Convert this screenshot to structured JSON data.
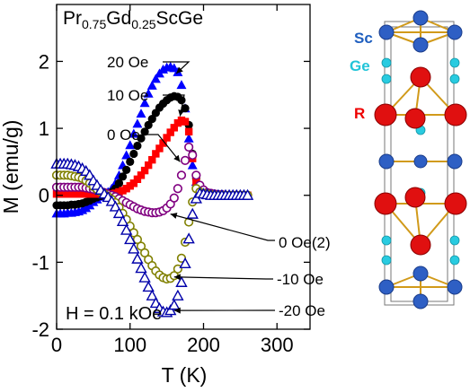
{
  "chart_data": {
    "type": "scatter",
    "title_parts": {
      "el1": "Pr",
      "sub1": "0.75",
      "el2": "Gd",
      "sub2": "0.25",
      "rest": "ScGe"
    },
    "field_label": "H = 0.1 kOe",
    "xlabel": "T (K)",
    "ylabel": "M (emu/g)",
    "xlim": [
      0,
      345
    ],
    "ylim": [
      -2,
      2.85
    ],
    "xticks": [
      0,
      100,
      200,
      300
    ],
    "yticks": [
      -2,
      -1,
      0,
      1,
      2
    ],
    "series": [
      {
        "name": "20 Oe",
        "color": "#0000ff",
        "marker": "triangle-filled",
        "x": [
          0,
          5,
          10,
          15,
          20,
          25,
          30,
          35,
          40,
          45,
          50,
          55,
          60,
          65,
          70,
          75,
          80,
          85,
          90,
          95,
          100,
          105,
          110,
          115,
          120,
          125,
          130,
          135,
          140,
          145,
          150,
          155,
          160,
          165,
          170,
          175,
          180,
          185,
          190,
          195,
          200,
          205,
          210,
          215,
          220,
          225,
          230,
          235,
          240,
          245,
          250,
          255,
          260
        ],
        "y": [
          -0.27,
          -0.27,
          -0.27,
          -0.26,
          -0.26,
          -0.25,
          -0.24,
          -0.22,
          -0.19,
          -0.15,
          -0.1,
          -0.06,
          -0.02,
          0.0,
          0.05,
          0.1,
          0.18,
          0.3,
          0.45,
          0.6,
          0.75,
          0.92,
          1.07,
          1.22,
          1.38,
          1.52,
          1.64,
          1.74,
          1.82,
          1.88,
          1.91,
          1.92,
          1.9,
          1.84,
          1.65,
          1.3,
          0.85,
          0.45,
          0.2,
          0.1,
          0.05,
          0.03,
          0.02,
          0.01,
          0.01,
          0.0,
          0.0,
          0.0,
          0.0,
          0.0,
          0.0,
          0.0,
          0.0
        ]
      },
      {
        "name": "10 Oe",
        "color": "#000000",
        "marker": "circle-filled",
        "x": [
          0,
          5,
          10,
          15,
          20,
          25,
          30,
          35,
          40,
          45,
          50,
          55,
          60,
          65,
          70,
          75,
          80,
          85,
          90,
          95,
          100,
          105,
          110,
          115,
          120,
          125,
          130,
          135,
          140,
          145,
          150,
          155,
          160,
          165,
          170,
          175,
          180,
          185,
          190,
          195,
          200,
          205,
          210,
          215,
          220,
          225,
          230,
          235,
          240,
          245,
          250,
          255,
          260
        ],
        "y": [
          -0.15,
          -0.15,
          -0.15,
          -0.15,
          -0.14,
          -0.14,
          -0.13,
          -0.12,
          -0.1,
          -0.08,
          -0.05,
          -0.03,
          -0.01,
          0.0,
          0.02,
          0.05,
          0.1,
          0.18,
          0.28,
          0.38,
          0.5,
          0.62,
          0.74,
          0.85,
          0.95,
          1.05,
          1.14,
          1.23,
          1.31,
          1.37,
          1.42,
          1.46,
          1.48,
          1.47,
          1.42,
          1.3,
          1.05,
          0.62,
          0.25,
          0.1,
          0.05,
          0.03,
          0.02,
          0.01,
          0.01,
          0.0,
          0.0,
          0.0,
          0.0,
          0.0,
          0.0,
          0.0,
          0.0
        ]
      },
      {
        "name": "0 Oe",
        "color": "#ff0000",
        "marker": "square-filled",
        "x": [
          0,
          5,
          10,
          15,
          20,
          25,
          30,
          35,
          40,
          45,
          50,
          55,
          60,
          65,
          70,
          75,
          80,
          85,
          90,
          95,
          100,
          105,
          110,
          115,
          120,
          125,
          130,
          135,
          140,
          145,
          150,
          155,
          160,
          165,
          170,
          175,
          180,
          185,
          190,
          195,
          200,
          205,
          210,
          215,
          220,
          225,
          230,
          235,
          240,
          245,
          250,
          255,
          260
        ],
        "y": [
          0.02,
          0.02,
          0.02,
          0.02,
          0.02,
          0.02,
          0.02,
          0.02,
          0.02,
          0.02,
          0.02,
          0.02,
          0.02,
          0.02,
          0.02,
          0.02,
          0.03,
          0.05,
          0.07,
          0.1,
          0.14,
          0.18,
          0.24,
          0.3,
          0.37,
          0.45,
          0.53,
          0.62,
          0.7,
          0.78,
          0.86,
          0.94,
          1.01,
          1.08,
          1.12,
          1.1,
          0.95,
          0.55,
          0.2,
          0.08,
          0.04,
          0.02,
          0.01,
          0.01,
          0.0,
          0.0,
          0.0,
          0.0,
          0.0,
          0.0,
          0.0,
          0.0,
          0.0
        ]
      },
      {
        "name": "0 Oe(2)",
        "color": "#800080",
        "marker": "circle-open",
        "x": [
          0,
          5,
          10,
          15,
          20,
          25,
          30,
          35,
          40,
          45,
          50,
          55,
          60,
          65,
          70,
          75,
          80,
          85,
          90,
          95,
          100,
          105,
          110,
          115,
          120,
          125,
          130,
          135,
          140,
          145,
          150,
          155,
          160,
          165,
          170,
          175,
          180,
          185,
          190,
          195,
          200,
          205,
          210,
          215,
          220,
          225,
          230,
          235,
          240,
          245,
          250,
          255,
          260
        ],
        "y": [
          0.12,
          0.12,
          0.12,
          0.12,
          0.12,
          0.12,
          0.12,
          0.12,
          0.11,
          0.1,
          0.09,
          0.08,
          0.06,
          0.04,
          0.02,
          0.0,
          -0.02,
          -0.05,
          -0.08,
          -0.11,
          -0.14,
          -0.17,
          -0.2,
          -0.22,
          -0.24,
          -0.25,
          -0.26,
          -0.26,
          -0.25,
          -0.23,
          -0.19,
          -0.13,
          -0.04,
          0.1,
          0.3,
          0.52,
          0.72,
          0.6,
          0.3,
          0.15,
          0.08,
          0.04,
          0.03,
          0.02,
          0.01,
          0.01,
          0.0,
          0.0,
          0.0,
          0.0,
          0.0,
          0.0,
          0.0
        ]
      },
      {
        "name": "-10 Oe",
        "color": "#808000",
        "marker": "circle-open",
        "x": [
          0,
          5,
          10,
          15,
          20,
          25,
          30,
          35,
          40,
          45,
          50,
          55,
          60,
          65,
          70,
          75,
          80,
          85,
          90,
          95,
          100,
          105,
          110,
          115,
          120,
          125,
          130,
          135,
          140,
          145,
          150,
          155,
          160,
          165,
          170,
          175,
          180,
          185,
          190,
          195,
          200,
          205,
          210,
          215,
          220,
          225,
          230,
          235,
          240,
          245,
          250,
          255,
          260
        ],
        "y": [
          0.3,
          0.3,
          0.3,
          0.3,
          0.29,
          0.28,
          0.27,
          0.25,
          0.22,
          0.18,
          0.13,
          0.09,
          0.05,
          0.02,
          -0.02,
          -0.06,
          -0.11,
          -0.18,
          -0.27,
          -0.36,
          -0.46,
          -0.56,
          -0.66,
          -0.76,
          -0.86,
          -0.96,
          -1.05,
          -1.13,
          -1.19,
          -1.23,
          -1.25,
          -1.24,
          -1.2,
          -1.1,
          -0.94,
          -0.7,
          -0.4,
          -0.1,
          0.1,
          0.05,
          0.03,
          0.02,
          0.01,
          0.0,
          0.0,
          0.0,
          0.0,
          0.0,
          0.0,
          0.0,
          0.0,
          0.0,
          0.0
        ]
      },
      {
        "name": "-20 Oe",
        "color": "#0000aa",
        "marker": "triangle-open",
        "x": [
          0,
          5,
          10,
          15,
          20,
          25,
          30,
          35,
          40,
          45,
          50,
          55,
          60,
          65,
          70,
          75,
          80,
          85,
          90,
          95,
          100,
          105,
          110,
          115,
          120,
          125,
          130,
          135,
          140,
          145,
          150,
          155,
          160,
          165,
          170,
          175,
          180,
          185,
          190,
          195,
          200,
          205,
          210,
          215,
          220,
          225,
          230,
          235,
          240,
          245,
          250,
          255,
          260
        ],
        "y": [
          0.47,
          0.47,
          0.47,
          0.47,
          0.46,
          0.45,
          0.43,
          0.4,
          0.36,
          0.3,
          0.22,
          0.15,
          0.08,
          0.02,
          -0.03,
          -0.09,
          -0.17,
          -0.27,
          -0.39,
          -0.52,
          -0.66,
          -0.8,
          -0.95,
          -1.09,
          -1.23,
          -1.37,
          -1.5,
          -1.61,
          -1.69,
          -1.74,
          -1.75,
          -1.72,
          -1.64,
          -1.5,
          -1.3,
          -1.02,
          -0.65,
          -0.28,
          -0.05,
          0.03,
          0.02,
          0.01,
          0.0,
          0.0,
          0.0,
          0.0,
          0.0,
          0.0,
          0.0,
          0.0,
          0.0,
          0.0,
          0.0
        ]
      }
    ],
    "annotations": [
      {
        "text": "20 Oe",
        "series": "20 Oe",
        "target_x": 163,
        "target_y": 1.82
      },
      {
        "text": "10 Oe",
        "series": "10 Oe",
        "target_x": 168,
        "target_y": 1.18
      },
      {
        "text": "0 Oe",
        "series": "0 Oe",
        "target_x": 168,
        "target_y": 0.5
      },
      {
        "text": "0 Oe(2)",
        "series": "0 Oe(2)",
        "target_x": 155,
        "target_y": -0.28
      },
      {
        "text": "-10 Oe",
        "series": "-10 Oe",
        "target_x": 160,
        "target_y": -1.22
      },
      {
        "text": "-20 Oe",
        "series": "-20 Oe",
        "target_x": 160,
        "target_y": -1.72
      }
    ],
    "inset": {
      "labels": [
        {
          "text": "Sc",
          "color": "#1f5fbf"
        },
        {
          "text": "Ge",
          "color": "#22c4d8"
        },
        {
          "text": "R",
          "color": "#ee0000"
        }
      ]
    }
  }
}
